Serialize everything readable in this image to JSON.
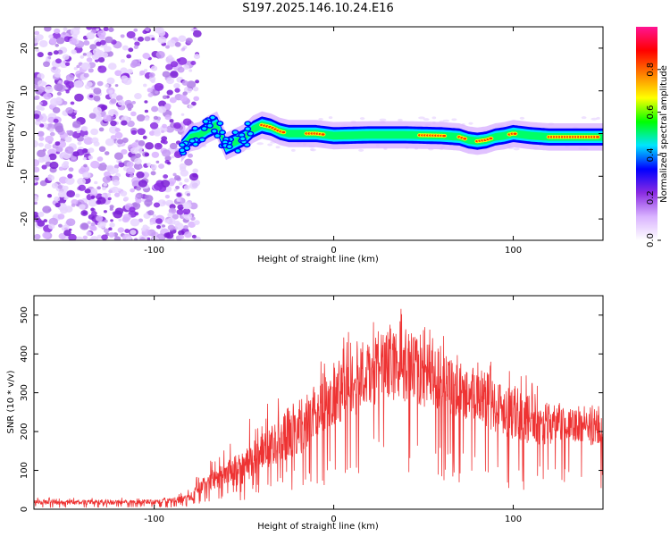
{
  "title": "S197.2025.146.10.24.E16",
  "chart_data": [
    {
      "type": "heatmap",
      "xlabel": "Height of straight line (km)",
      "ylabel": "Frequency (Hz)",
      "xlim": [
        -167,
        150
      ],
      "ylim": [
        -25,
        25
      ],
      "xticks": [
        -100,
        0,
        100
      ],
      "yticks": [
        -20,
        -10,
        0,
        10,
        20
      ],
      "colorbar": {
        "label": "Normalized spectral amplitude",
        "range": [
          0,
          1
        ],
        "ticks": [
          "0.0",
          "0.2",
          "0.4",
          "0.6",
          "0.8"
        ],
        "tick_values": [
          0.0,
          0.2,
          0.4,
          0.6,
          0.8
        ],
        "colormap": [
          "#ffffff",
          "#d9b3ff",
          "#8a2be2",
          "#0000ff",
          "#00e5ff",
          "#00ff00",
          "#ffff00",
          "#ff8000",
          "#ff0000",
          "#ff1493"
        ]
      },
      "description_regions": {
        "noise_region_x": [
          -167,
          -82
        ],
        "signal_track": {
          "x": [
            -85,
            -80,
            -75,
            -70,
            -65,
            -60,
            -55,
            -50,
            -45,
            -40,
            -35,
            -30,
            -25,
            -20,
            -10,
            0,
            20,
            40,
            60,
            70,
            75,
            80,
            85,
            90,
            95,
            100,
            110,
            120,
            130,
            140,
            150
          ],
          "y": [
            -3.5,
            -1,
            -0.5,
            1,
            2,
            -3,
            -2,
            -1,
            1,
            2,
            1.5,
            0.5,
            0,
            0,
            0,
            -0.5,
            -0.3,
            -0.3,
            -0.5,
            -0.8,
            -1.5,
            -1.8,
            -1.5,
            -0.8,
            -0.5,
            0,
            -0.5,
            -0.8,
            -0.8,
            -0.8,
            -0.8
          ]
        },
        "peak_segments_x": [
          [
            -40,
            -28
          ],
          [
            -15,
            -5
          ],
          [
            48,
            62
          ],
          [
            70,
            74
          ],
          [
            80,
            88
          ],
          [
            98,
            102
          ],
          [
            120,
            148
          ]
        ]
      },
      "grid": false
    },
    {
      "type": "line",
      "xlabel": "Height of straight line (km)",
      "ylabel": "SNR (10 * v/v)",
      "xlim": [
        -167,
        150
      ],
      "ylim": [
        0,
        550
      ],
      "xticks": [
        -100,
        0,
        100
      ],
      "yticks": [
        0,
        100,
        200,
        300,
        400,
        500
      ],
      "color": "#ee3333",
      "grid": false,
      "envelope": {
        "x": [
          -167,
          -140,
          -110,
          -90,
          -80,
          -75,
          -70,
          -60,
          -50,
          -40,
          -30,
          -20,
          -10,
          0,
          10,
          20,
          30,
          40,
          50,
          60,
          70,
          80,
          90,
          100,
          110,
          120,
          130,
          140,
          150
        ],
        "low": [
          8,
          8,
          8,
          10,
          15,
          30,
          35,
          40,
          60,
          80,
          100,
          110,
          130,
          150,
          160,
          180,
          190,
          190,
          170,
          160,
          150,
          140,
          130,
          110,
          110,
          110,
          120,
          130,
          100
        ],
        "typical": [
          18,
          18,
          18,
          22,
          28,
          55,
          70,
          90,
          110,
          150,
          180,
          210,
          250,
          290,
          320,
          350,
          370,
          370,
          350,
          330,
          310,
          290,
          270,
          250,
          230,
          220,
          220,
          210,
          200
        ],
        "high": [
          30,
          32,
          30,
          35,
          60,
          100,
          120,
          160,
          230,
          250,
          330,
          380,
          390,
          420,
          470,
          490,
          510,
          540,
          480,
          460,
          420,
          400,
          390,
          370,
          340,
          300,
          290,
          270,
          270
        ]
      }
    }
  ]
}
